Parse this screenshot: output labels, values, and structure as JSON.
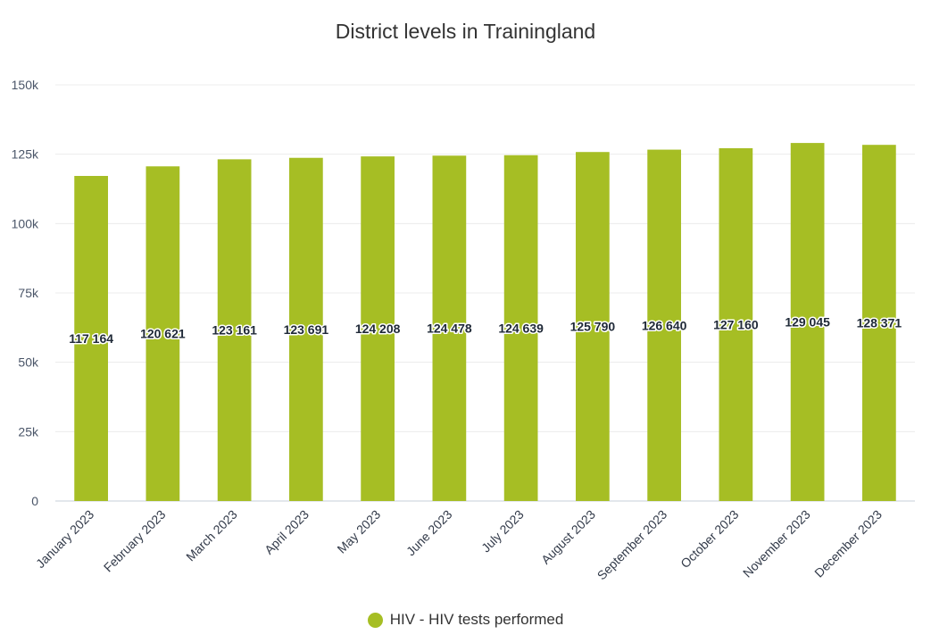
{
  "chart_data": {
    "type": "bar",
    "title": "District levels in Trainingland",
    "categories": [
      "January 2023",
      "February 2023",
      "March 2023",
      "April 2023",
      "May 2023",
      "June 2023",
      "July 2023",
      "August 2023",
      "September 2023",
      "October 2023",
      "November 2023",
      "December 2023"
    ],
    "series": [
      {
        "name": "HIV - HIV tests performed",
        "values": [
          117164,
          120621,
          123161,
          123691,
          124208,
          124478,
          124639,
          125790,
          126640,
          127160,
          129045,
          128371
        ],
        "data_labels": [
          "117 164",
          "120 621",
          "123 161",
          "123 691",
          "124 208",
          "124 478",
          "124 639",
          "125 790",
          "126 640",
          "127 160",
          "129 045",
          "128 371"
        ],
        "color": "#a6be24"
      }
    ],
    "ylim": [
      0,
      150000
    ],
    "y_ticks": [
      0,
      25000,
      50000,
      75000,
      100000,
      125000,
      150000
    ],
    "y_tick_labels": [
      "0",
      "25k",
      "50k",
      "75k",
      "100k",
      "125k",
      "150k"
    ],
    "xlabel": "",
    "ylabel": "",
    "grid": true,
    "legend_position": "bottom-center"
  }
}
